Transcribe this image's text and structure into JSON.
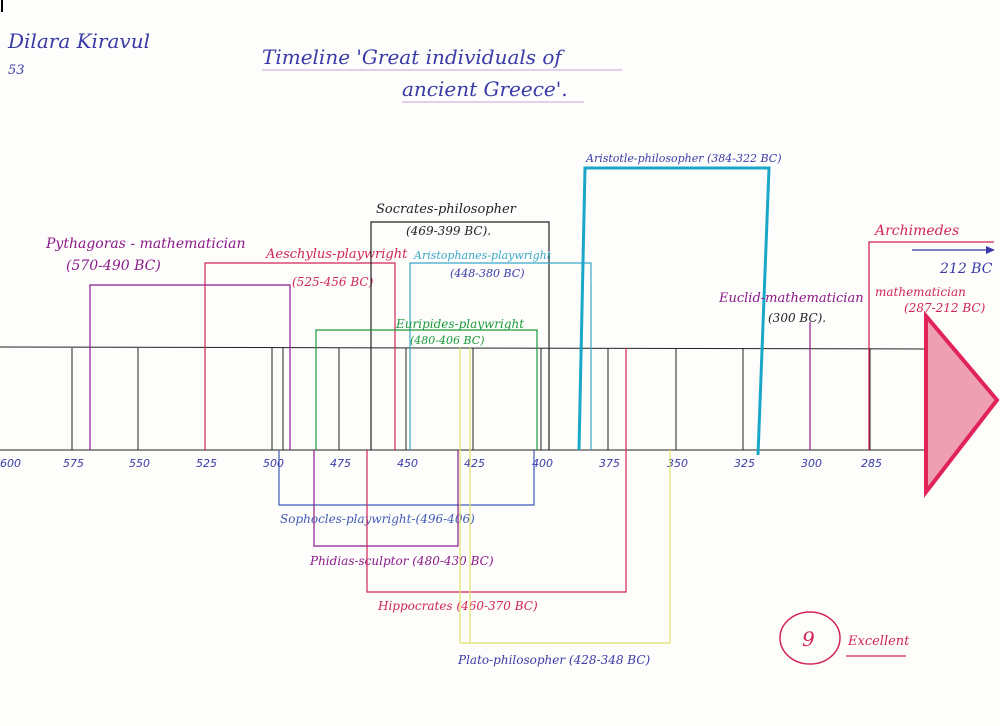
{
  "header": {
    "student_name": "Dilara Kiravul",
    "student_number": "53",
    "title_line1": "Timeline 'Great individuals of",
    "title_line2": "ancient Greece'."
  },
  "axis": {
    "ticks": [
      "600",
      "575",
      "550",
      "525",
      "500",
      "475",
      "450",
      "425",
      "400",
      "375",
      "350",
      "325",
      "300",
      "285"
    ],
    "end_arrow_label": "212 BC"
  },
  "figures": [
    {
      "label1": "Pythagoras - mathematician",
      "label2": "(570-490 BC)",
      "color": "#8b1a8b"
    },
    {
      "label1": "Aeschylus-playwright",
      "label2": "(525-456 BC)",
      "color": "#d1245a"
    },
    {
      "label1": "Socrates-philosopher",
      "label2": "(469-399 BC).",
      "color": "#222222"
    },
    {
      "label1": "Aristophanes-playwright",
      "label2": "(448-380 BC)",
      "color": "#3aa7c9"
    },
    {
      "label1": "Euripides-playwright",
      "label2": "(480-406 BC)",
      "color": "#1b9a3b"
    },
    {
      "label1": "Aristotle-philosopher (384-322 BC)",
      "label2": "",
      "color": "#1aa6c8"
    },
    {
      "label1": "Euclid-mathematician",
      "label2": "(300 BC).",
      "color": "#8b1a8b"
    },
    {
      "label1": "Archimedes",
      "label2": "mathematician",
      "label3": "(287-212 BC)",
      "color": "#d1245a"
    },
    {
      "label1": "Sophocles-playwright-(496-406)",
      "color": "#3f5bb5"
    },
    {
      "label1": "Phidias-sculptor (480-430 BC)",
      "color": "#8b1a8b"
    },
    {
      "label1": "Hippocrates (460-370 BC)",
      "color": "#d1245a"
    },
    {
      "label1": "Plato-philosopher (428-348 BC)",
      "color": "#d8d860"
    }
  ],
  "grade": {
    "score": "9",
    "comment": "Excellent"
  }
}
